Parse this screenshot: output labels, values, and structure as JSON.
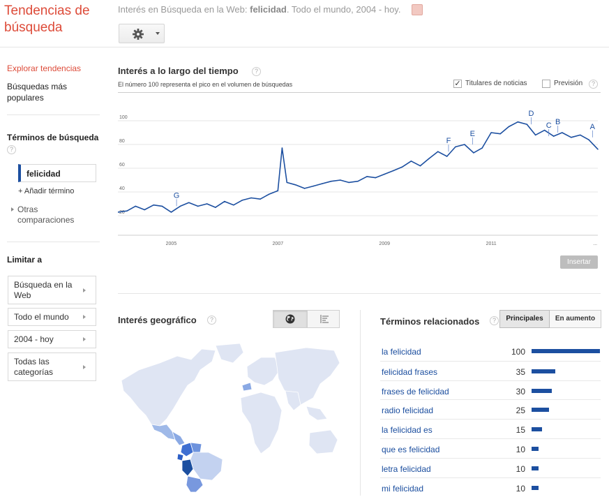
{
  "app": {
    "title": "Tendencias de búsqueda"
  },
  "context": {
    "prefix": "Interés en Búsqueda en la Web:",
    "term": "felicidad",
    "suffix": ". Todo el mundo, 2004 - hoy."
  },
  "toolbar": {
    "gear_icon": "gear-icon",
    "caret_icon": "caret-down-icon"
  },
  "sidebar": {
    "explore": "Explorar tendencias",
    "popular": "Búsquedas más populares",
    "terms_heading": "Términos de búsqueda",
    "help_glyph": "?",
    "term": "felicidad",
    "add_term": "+ Añadir término",
    "other_comparisons": "Otras comparaciones",
    "limit_heading": "Limitar a",
    "limits": [
      "Búsqueda en la Web",
      "Todo el mundo",
      "2004 - hoy",
      "Todas las categorías"
    ]
  },
  "interest_over_time": {
    "title": "Interés a lo largo del tiempo",
    "subtitle": "El número 100 representa el pico en el volumen de búsquedas",
    "news_label": "Titulares de noticias",
    "news_checked": true,
    "check_glyph": "✓",
    "forecast_label": "Previsión",
    "forecast_checked": false,
    "insert_button": "Insertar"
  },
  "chart_data": {
    "type": "line",
    "series_color": "#1c4fa0",
    "ylim": [
      0,
      100
    ],
    "y_ticks": [
      "20",
      "40",
      "60",
      "80",
      "100"
    ],
    "x_ticks": [
      "2005",
      "2007",
      "2009",
      "2011",
      "..."
    ],
    "grid": true,
    "x": [
      2004.0,
      2004.17,
      2004.33,
      2004.5,
      2004.67,
      2004.83,
      2005.0,
      2005.17,
      2005.33,
      2005.5,
      2005.67,
      2005.83,
      2006.0,
      2006.17,
      2006.33,
      2006.5,
      2006.67,
      2006.83,
      2007.0,
      2007.08,
      2007.17,
      2007.33,
      2007.5,
      2007.67,
      2007.83,
      2008.0,
      2008.17,
      2008.33,
      2008.5,
      2008.67,
      2008.83,
      2009.0,
      2009.17,
      2009.33,
      2009.5,
      2009.67,
      2009.83,
      2010.0,
      2010.17,
      2010.33,
      2010.5,
      2010.67,
      2010.83,
      2011.0,
      2011.17,
      2011.33,
      2011.5,
      2011.67,
      2011.83,
      2012.0,
      2012.17,
      2012.33,
      2012.5,
      2012.67,
      2012.83,
      2013.0
    ],
    "values": [
      23,
      24,
      28,
      25,
      29,
      28,
      23,
      28,
      31,
      28,
      30,
      27,
      32,
      29,
      33,
      35,
      34,
      38,
      41,
      77,
      48,
      46,
      43,
      45,
      47,
      49,
      50,
      48,
      49,
      53,
      52,
      55,
      58,
      61,
      66,
      62,
      68,
      74,
      70,
      78,
      80,
      73,
      77,
      90,
      89,
      95,
      99,
      97,
      88,
      92,
      87,
      90,
      86,
      88,
      84,
      76
    ],
    "annotations": [
      {
        "label": "G",
        "x": 2005.1,
        "y": 28
      },
      {
        "label": "F",
        "x": 2010.2,
        "y": 74
      },
      {
        "label": "E",
        "x": 2010.65,
        "y": 80
      },
      {
        "label": "D",
        "x": 2011.75,
        "y": 97
      },
      {
        "label": "C",
        "x": 2012.08,
        "y": 87
      },
      {
        "label": "B",
        "x": 2012.25,
        "y": 90
      },
      {
        "label": "A",
        "x": 2012.9,
        "y": 86
      }
    ]
  },
  "geo": {
    "title": "Interés geográfico",
    "map_icon": "globe-icon",
    "list_icon": "list-icon"
  },
  "related": {
    "title": "Términos relacionados",
    "tab_top": "Principales",
    "tab_rising": "En aumento",
    "rows": [
      {
        "term": "la felicidad",
        "value": "100",
        "fraction": 1.0
      },
      {
        "term": "felicidad frases",
        "value": "35",
        "fraction": 0.35
      },
      {
        "term": "frases de felicidad",
        "value": "30",
        "fraction": 0.3
      },
      {
        "term": "radio felicidad",
        "value": "25",
        "fraction": 0.25
      },
      {
        "term": "la felicidad es",
        "value": "15",
        "fraction": 0.15
      },
      {
        "term": "que es felicidad",
        "value": "10",
        "fraction": 0.1
      },
      {
        "term": "letra felicidad",
        "value": "10",
        "fraction": 0.1
      },
      {
        "term": "mi felicidad",
        "value": "10",
        "fraction": 0.1
      }
    ]
  }
}
